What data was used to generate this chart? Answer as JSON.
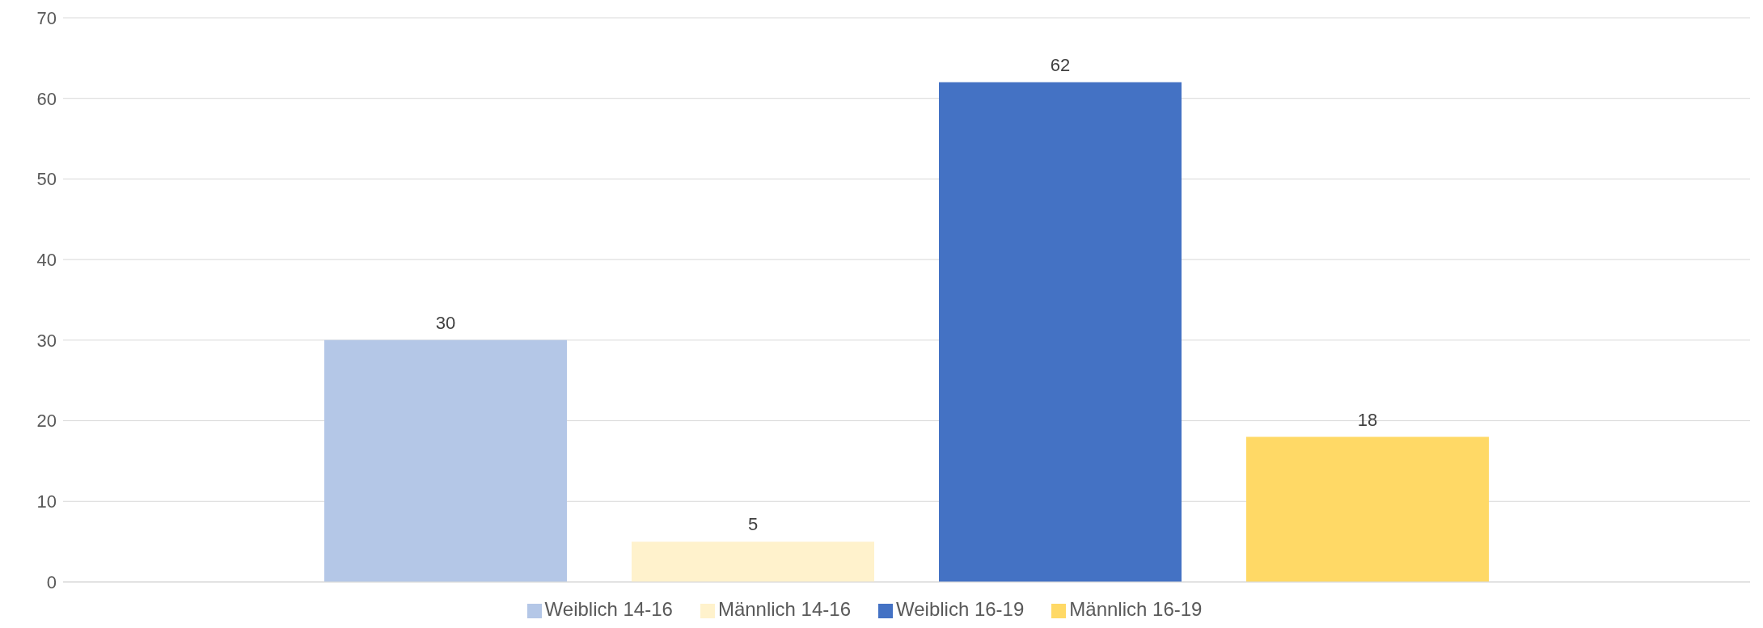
{
  "chart_data": {
    "type": "bar",
    "categories": [
      null
    ],
    "series": [
      {
        "name": "Weiblich 14-16",
        "color": "#b4c7e7",
        "values": [
          30
        ]
      },
      {
        "name": "Männlich 14-16",
        "color": "#fff2cc",
        "values": [
          5
        ]
      },
      {
        "name": "Weiblich 16-19",
        "color": "#4472c4",
        "values": [
          62
        ]
      },
      {
        "name": "Männlich 16-19",
        "color": "#ffd966",
        "values": [
          18
        ]
      }
    ],
    "ylim": [
      0,
      70
    ],
    "yticks": [
      0,
      10,
      20,
      30,
      40,
      50,
      60,
      70
    ],
    "grid": "y",
    "legend": "bottom",
    "data_labels": true
  }
}
